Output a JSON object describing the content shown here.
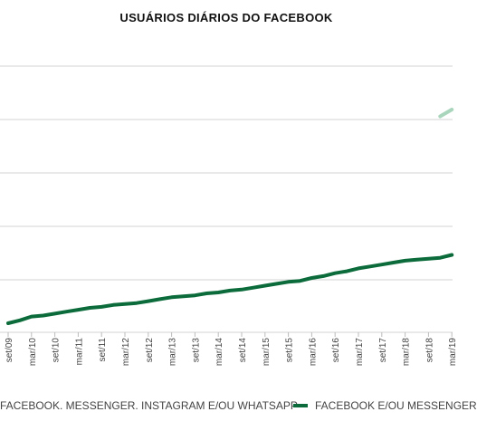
{
  "chart_data": {
    "type": "line",
    "title": "USUÁRIOS DIÁRIOS DO FACEBOOK",
    "x_tick_labels": [
      "set/09",
      "mar/10",
      "set/10",
      "mar/11",
      "set/11",
      "mar/12",
      "set/12",
      "mar/13",
      "set/13",
      "mar/14",
      "set/14",
      "mar/15",
      "set/15",
      "mar/16",
      "set/16",
      "mar/17",
      "set/17",
      "mar/18",
      "set/18",
      "mar/19"
    ],
    "grid": true,
    "legend_position": "bottom",
    "series": [
      {
        "name": "FACEBOOK. MESSENGER. INSTAGRAM E/OU WHATSAPP",
        "color": "#a8d5bb",
        "x": [
          "dez/18",
          "mar/19"
        ],
        "values": [
          2.15,
          2.22
        ]
      },
      {
        "name": "FACEBOOK E/OU MESSENGER",
        "color": "#0c6b3a",
        "x": [
          "set/09",
          "dez/09",
          "mar/10",
          "jun/10",
          "set/10",
          "dez/10",
          "mar/11",
          "jun/11",
          "set/11",
          "dez/11",
          "mar/12",
          "jun/12",
          "set/12",
          "dez/12",
          "mar/13",
          "jun/13",
          "set/13",
          "dez/13",
          "mar/14",
          "jun/14",
          "set/14",
          "dez/14",
          "mar/15",
          "jun/15",
          "set/15",
          "dez/15",
          "mar/16",
          "jun/16",
          "set/16",
          "dez/16",
          "mar/17",
          "jun/17",
          "set/17",
          "dez/17",
          "mar/18",
          "jun/18",
          "set/18",
          "dez/18",
          "mar/19"
        ],
        "values": [
          0.0,
          0.03,
          0.07,
          0.08,
          0.1,
          0.12,
          0.14,
          0.16,
          0.17,
          0.19,
          0.2,
          0.21,
          0.23,
          0.25,
          0.27,
          0.28,
          0.29,
          0.31,
          0.32,
          0.34,
          0.35,
          0.37,
          0.39,
          0.41,
          0.43,
          0.44,
          0.47,
          0.49,
          0.52,
          0.54,
          0.57,
          0.59,
          0.61,
          0.63,
          0.65,
          0.66,
          0.67,
          0.68,
          0.71
        ]
      }
    ]
  }
}
